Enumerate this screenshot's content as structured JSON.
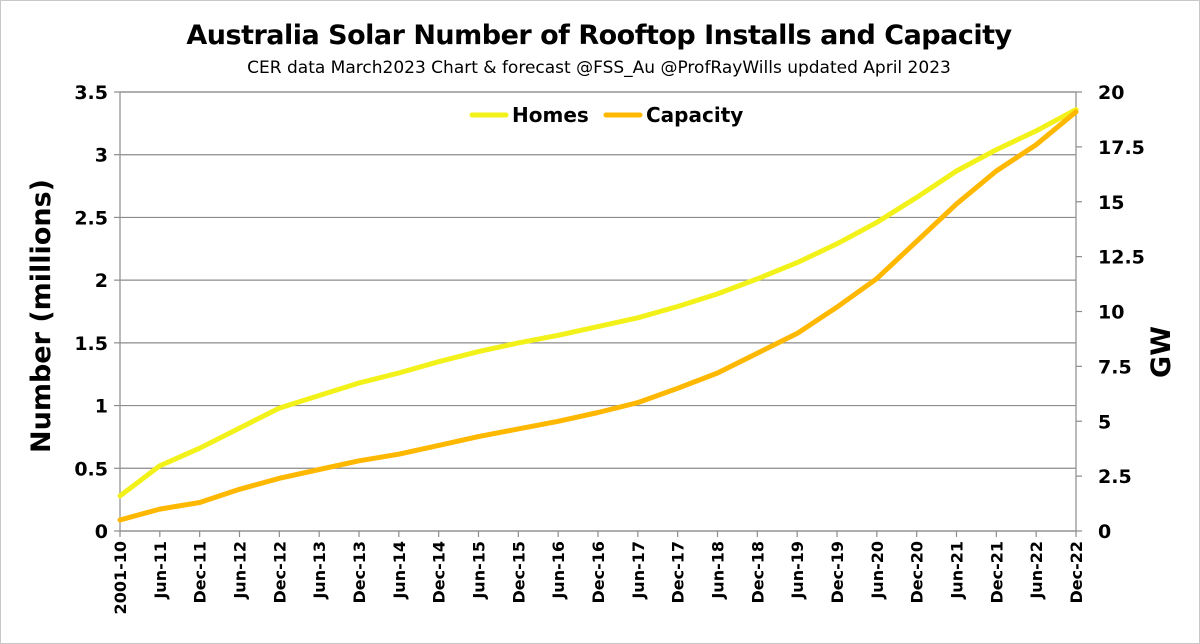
{
  "chart_data": {
    "type": "line",
    "title": "Australia Solar Number of Rooftop Installs and Capacity",
    "subtitle": "CER data March2023 Chart & forecast @FSS_Au @ProfRayWills updated April 2023",
    "ylabel": "Number (millions)",
    "y2label": "GW",
    "ylim": [
      0,
      3.5
    ],
    "y2lim": [
      0,
      20
    ],
    "yticks": [
      "0",
      "0.5",
      "1",
      "1.5",
      "2",
      "2.5",
      "3",
      "3.5"
    ],
    "y2ticks": [
      "0",
      "2.5",
      "5",
      "7.5",
      "10",
      "12.5",
      "15",
      "17.5",
      "20"
    ],
    "xticks": [
      "2001-10",
      "Jun-11",
      "Dec-11",
      "Jun-12",
      "Dec-12",
      "Jun-13",
      "Dec-13",
      "Jun-14",
      "Dec-14",
      "Jun-15",
      "Dec-15",
      "Jun-16",
      "Dec-16",
      "Jun-17",
      "Dec-17",
      "Jun-18",
      "Dec-18",
      "Jun-19",
      "Dec-19",
      "Jun-20",
      "Dec-20",
      "Jun-21",
      "Dec-21",
      "Jun-22",
      "Dec-22"
    ],
    "legend_position": "top-center",
    "grid": true,
    "series": [
      {
        "name": "Homes",
        "axis": "left",
        "color": "#f2f21a",
        "values": [
          0.28,
          0.52,
          0.66,
          0.82,
          0.98,
          1.08,
          1.18,
          1.26,
          1.35,
          1.43,
          1.5,
          1.56,
          1.63,
          1.7,
          1.79,
          1.89,
          2.01,
          2.14,
          2.29,
          2.46,
          2.66,
          2.87,
          3.04,
          3.19,
          3.36
        ]
      },
      {
        "name": "Capacity",
        "axis": "right",
        "color": "#ffb800",
        "values": [
          0.5,
          1.0,
          1.3,
          1.9,
          2.4,
          2.8,
          3.2,
          3.5,
          3.9,
          4.3,
          4.65,
          5.0,
          5.4,
          5.85,
          6.5,
          7.2,
          8.1,
          9.0,
          10.2,
          11.5,
          13.2,
          14.9,
          16.4,
          17.6,
          19.1
        ]
      }
    ]
  }
}
